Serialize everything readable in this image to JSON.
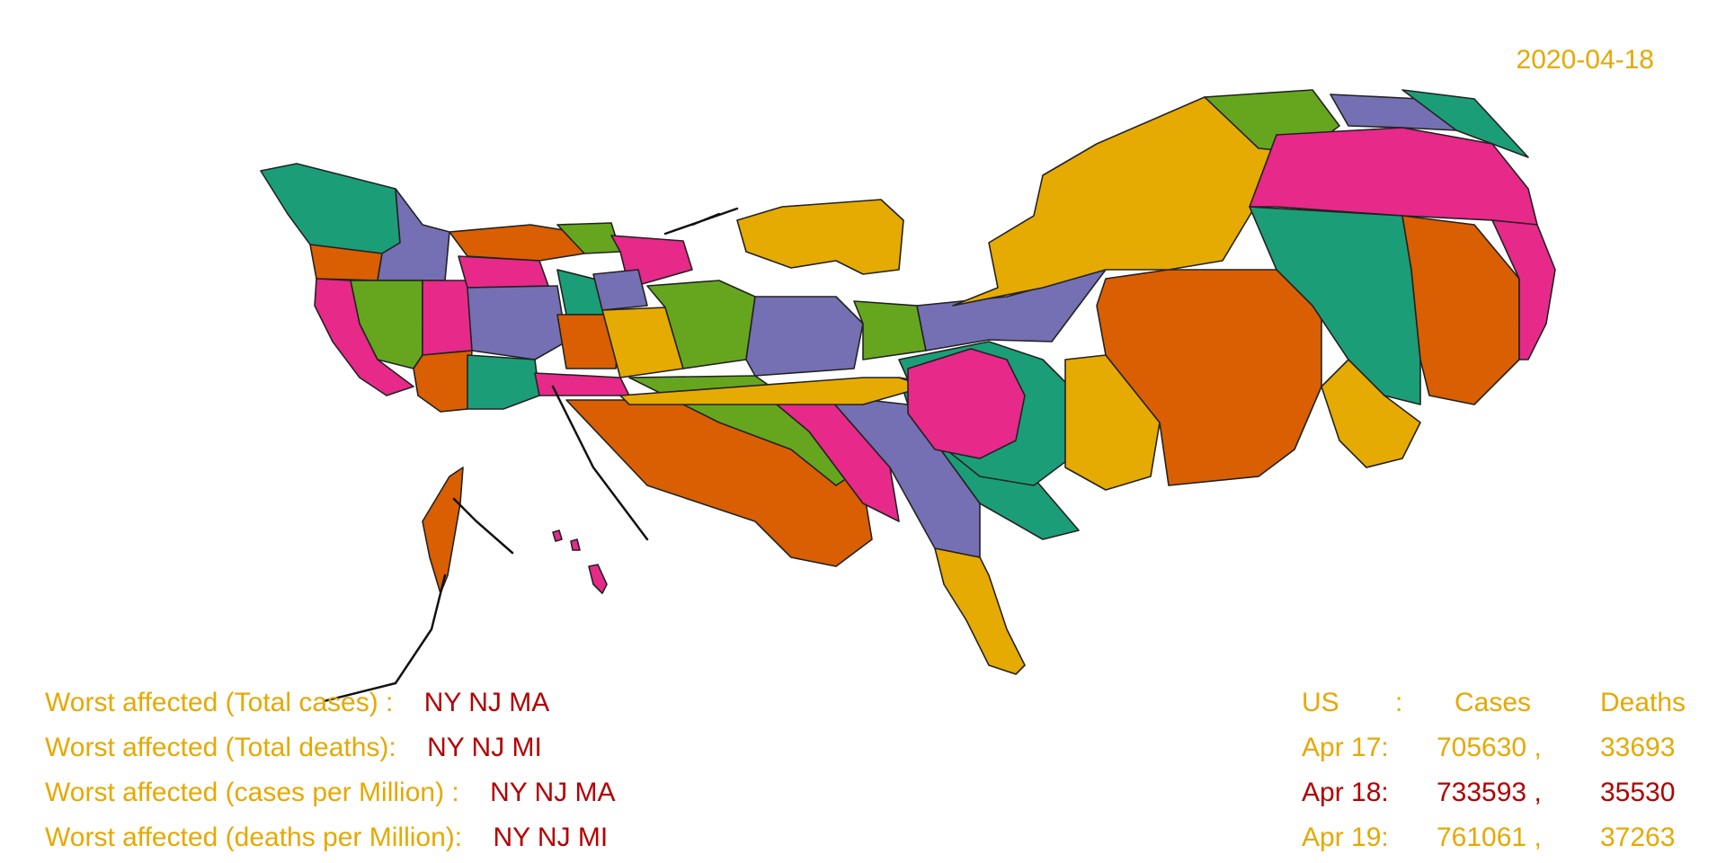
{
  "date": "2020-04-18",
  "colors": {
    "label": "#e6a800",
    "highlight": "#b40000",
    "palette": [
      "#1b9e77",
      "#d95f02",
      "#7570b3",
      "#e7298a",
      "#66a61e",
      "#e6ab02"
    ]
  },
  "worst_affected": [
    {
      "label": "Worst affected (Total cases) :",
      "states": "NY NJ MA"
    },
    {
      "label": "Worst affected (Total deaths):",
      "states": "NY NJ MI"
    },
    {
      "label": "Worst affected (cases per Million) :",
      "states": "NY NJ MA"
    },
    {
      "label": "Worst affected (deaths per Million):",
      "states": "NY NJ MI"
    }
  ],
  "stats": {
    "header": {
      "region": "US",
      "sep": ":",
      "cases": "Cases",
      "deaths": "Deaths"
    },
    "rows": [
      {
        "day": "Apr 17:",
        "cases": "705630 ,",
        "deaths": "33693",
        "current": false
      },
      {
        "day": "Apr 18:",
        "cases": "733593 ,",
        "deaths": "35530",
        "current": true
      },
      {
        "day": "Apr 19:",
        "cases": "761061 ,",
        "deaths": "37263",
        "current": false
      }
    ]
  }
}
